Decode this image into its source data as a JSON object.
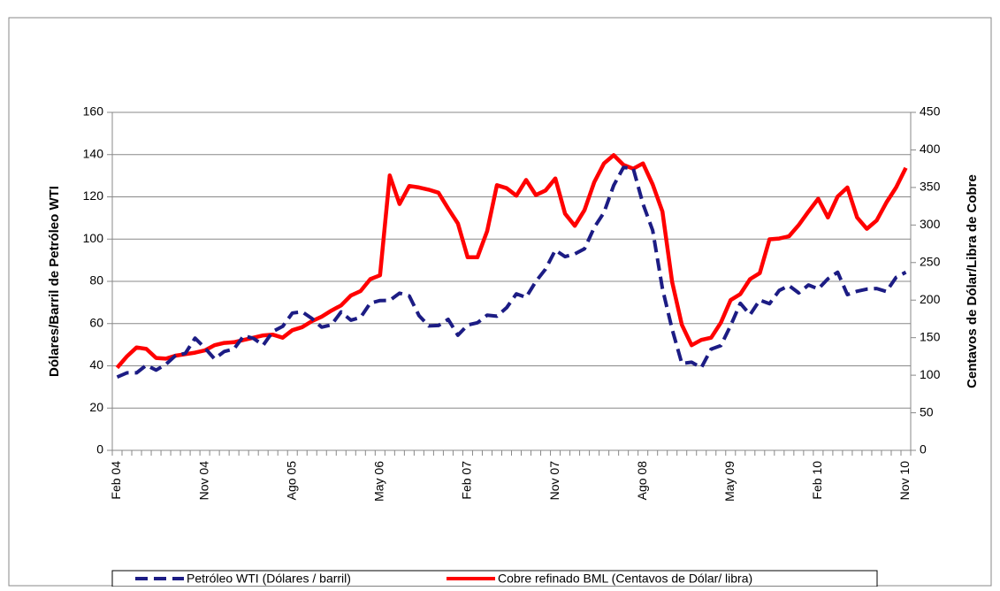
{
  "chart_data": {
    "type": "line",
    "ylabel": "Dólares/Barril de Petróleo WTI",
    "y2label": "Centavos de Dólar/Libra de Cobre",
    "categories": [
      "Feb 04",
      null,
      null,
      null,
      null,
      null,
      null,
      null,
      null,
      "Nov 04",
      null,
      null,
      null,
      null,
      null,
      null,
      null,
      null,
      "Ago 05",
      null,
      null,
      null,
      null,
      null,
      null,
      null,
      null,
      "May 06",
      null,
      null,
      null,
      null,
      null,
      null,
      null,
      null,
      "Feb 07",
      null,
      null,
      null,
      null,
      null,
      null,
      null,
      null,
      "Nov 07",
      null,
      null,
      null,
      null,
      null,
      null,
      null,
      null,
      "Ago 08",
      null,
      null,
      null,
      null,
      null,
      null,
      null,
      null,
      "May 09",
      null,
      null,
      null,
      null,
      null,
      null,
      null,
      null,
      "Feb 10",
      null,
      null,
      null,
      null,
      null,
      null,
      null,
      null,
      "Nov 10"
    ],
    "series": [
      {
        "name": "Petróleo WTI (Dólares / barril)",
        "color": "#1c1c84",
        "dash": true,
        "values": [
          34.7,
          36.7,
          36.7,
          40.3,
          38.0,
          40.7,
          44.9,
          45.9,
          53.1,
          48.5,
          43.3,
          46.8,
          48.0,
          54.3,
          53.0,
          49.8,
          56.3,
          58.7,
          65.0,
          65.6,
          62.4,
          58.3,
          59.4,
          65.5,
          61.6,
          62.9,
          69.7,
          70.9,
          71.0,
          74.4,
          73.1,
          63.8,
          58.9,
          59.1,
          62.0,
          54.5,
          59.3,
          60.4,
          64.0,
          63.5,
          67.5,
          74.1,
          72.4,
          79.9,
          85.8,
          94.8,
          91.7,
          93.0,
          95.4,
          105.5,
          112.6,
          125.4,
          133.9,
          133.4,
          116.7,
          104.1,
          76.6,
          57.3,
          41.1,
          41.7,
          39.1,
          47.9,
          49.6,
          59.0,
          69.6,
          64.2,
          71.1,
          69.4,
          75.7,
          78.0,
          74.5,
          78.3,
          76.4,
          81.2,
          84.3,
          73.7,
          75.3,
          76.3,
          76.6,
          75.2,
          81.9,
          84.3
        ]
      },
      {
        "name": "Cobre refinado BML (Centavos de Dólar/ libra)",
        "color": "#ff0000",
        "axis": "y2",
        "values": [
          110,
          125,
          137,
          135,
          123,
          122,
          126,
          128,
          130,
          133,
          140,
          143,
          144,
          147,
          150,
          153,
          154,
          150,
          160,
          164,
          172,
          178,
          186,
          193,
          206,
          212,
          228,
          233,
          366,
          328,
          352,
          350,
          347,
          343,
          322,
          302,
          257,
          257,
          292,
          353,
          349,
          339,
          360,
          340,
          346,
          362,
          315,
          299,
          320,
          357,
          382,
          393,
          380,
          375,
          382,
          354,
          318,
          224,
          167,
          140,
          147,
          150,
          170,
          200,
          208,
          228,
          236,
          281,
          282,
          285,
          300,
          318,
          335,
          310,
          338,
          350,
          310,
          295,
          306,
          330,
          350,
          376
        ]
      }
    ],
    "ylim": [
      0,
      160
    ],
    "yticks": [
      0,
      20,
      40,
      60,
      80,
      100,
      120,
      140,
      160
    ],
    "y2lim": [
      0,
      450
    ],
    "y2ticks": [
      0,
      50,
      100,
      150,
      200,
      250,
      300,
      350,
      400,
      450
    ],
    "grid": true,
    "legend": "bottom"
  }
}
